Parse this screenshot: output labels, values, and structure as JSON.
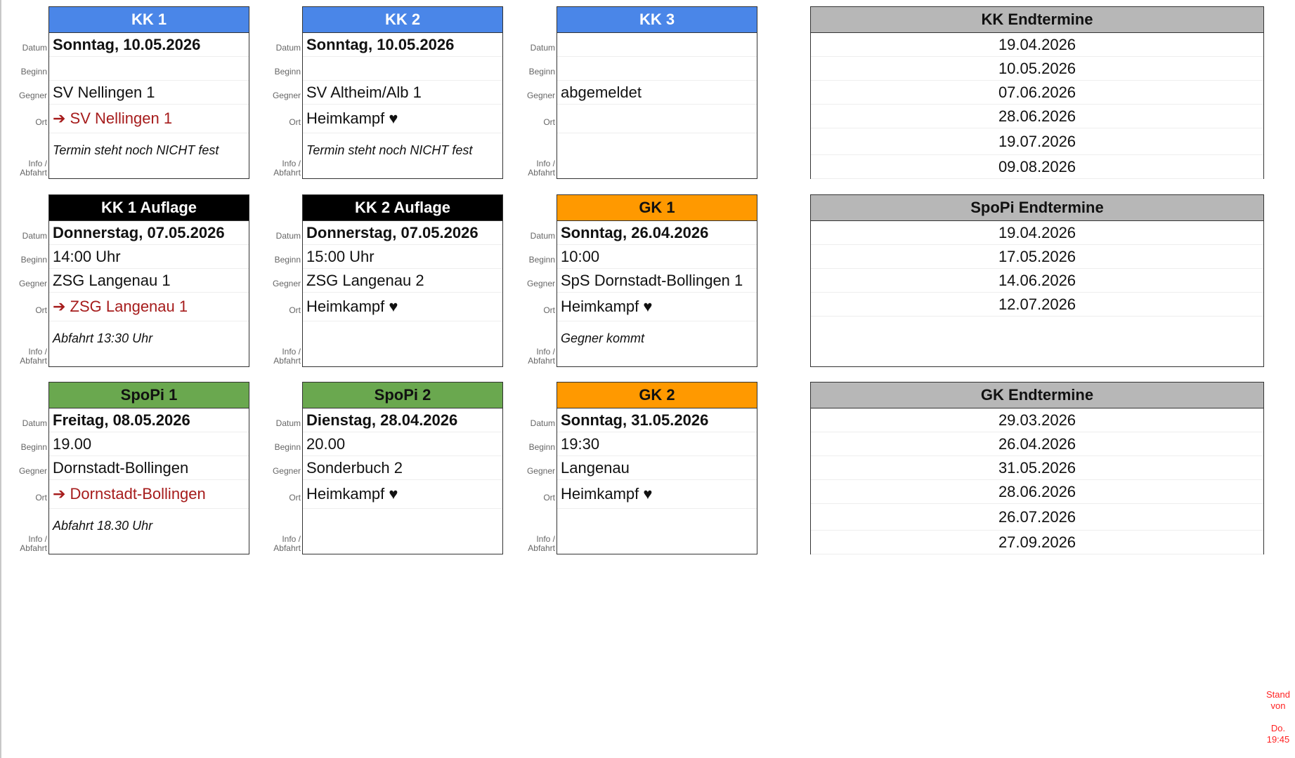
{
  "labels": {
    "datum": "Datum",
    "beginn": "Beginn",
    "gegner": "Gegner",
    "ort": "Ort",
    "info1": "Info /",
    "info2": "Abfahrt"
  },
  "cards": [
    {
      "title": "KK 1",
      "header_color": "#4a86e8",
      "header_text_color": "#ffffff",
      "datum": "Sonntag, 10.05.2026",
      "beginn": "",
      "gegner": "SV Nellingen 1",
      "ort": "➔ SV Nellingen 1",
      "away": true,
      "info": "Termin steht noch NICHT fest"
    },
    {
      "title": "KK 2",
      "header_color": "#4a86e8",
      "header_text_color": "#ffffff",
      "datum": "Sonntag, 10.05.2026",
      "beginn": "",
      "gegner": "SV Altheim/Alb 1",
      "ort": "Heimkampf ♥",
      "away": false,
      "info": "Termin steht noch NICHT fest"
    },
    {
      "title": "KK 3",
      "header_color": "#4a86e8",
      "header_text_color": "#ffffff",
      "datum": "",
      "beginn": "",
      "gegner": "abgemeldet",
      "ort": "",
      "away": false,
      "info": ""
    },
    {
      "title": "KK 1 Auflage",
      "header_color": "#000000",
      "header_text_color": "#ffffff",
      "datum": "Donnerstag, 07.05.2026",
      "beginn": "14:00 Uhr",
      "gegner": "ZSG Langenau 1",
      "ort": "➔ ZSG Langenau 1",
      "away": true,
      "info": "Abfahrt 13:30 Uhr"
    },
    {
      "title": "KK 2 Auflage",
      "header_color": "#000000",
      "header_text_color": "#ffffff",
      "datum": "Donnerstag, 07.05.2026",
      "beginn": "15:00 Uhr",
      "gegner": "ZSG Langenau 2",
      "ort": "Heimkampf ♥",
      "away": false,
      "info": ""
    },
    {
      "title": "GK 1",
      "header_color": "#ff9900",
      "header_text_color": "#111111",
      "datum": "Sonntag, 26.04.2026",
      "beginn": "10:00",
      "gegner": "SpS Dornstadt-Bollingen 1",
      "ort": "Heimkampf ♥",
      "away": false,
      "info": "Gegner kommt"
    },
    {
      "title": "SpoPi 1",
      "header_color": "#6aa84f",
      "header_text_color": "#111111",
      "datum": "Freitag, 08.05.2026",
      "beginn": "19.00",
      "gegner": "Dornstadt-Bollingen",
      "ort": "➔ Dornstadt-Bollingen",
      "away": true,
      "info": "Abfahrt 18.30 Uhr"
    },
    {
      "title": "SpoPi 2",
      "header_color": "#6aa84f",
      "header_text_color": "#111111",
      "datum": "Dienstag, 28.04.2026",
      "beginn": "20.00",
      "gegner": "Sonderbuch 2",
      "ort": "Heimkampf ♥",
      "away": false,
      "info": ""
    },
    {
      "title": "GK 2",
      "header_color": "#ff9900",
      "header_text_color": "#111111",
      "datum": "Sonntag, 31.05.2026",
      "beginn": "19:30",
      "gegner": "Langenau",
      "ort": "Heimkampf ♥",
      "away": false,
      "info": ""
    }
  ],
  "endtermine": [
    {
      "title": "KK Endtermine",
      "dates": [
        "19.04.2026",
        "10.05.2026",
        "07.06.2026",
        "28.06.2026",
        "19.07.2026",
        "09.08.2026"
      ]
    },
    {
      "title": "SpoPi Endtermine",
      "dates": [
        "19.04.2026",
        "17.05.2026",
        "14.06.2026",
        "12.07.2026"
      ]
    },
    {
      "title": "GK Endtermine",
      "dates": [
        "29.03.2026",
        "26.04.2026",
        "31.05.2026",
        "28.06.2026",
        "26.07.2026",
        "27.09.2026"
      ]
    }
  ],
  "stand": {
    "line1": "Stand",
    "line2": "von",
    "line3": "Do.",
    "line4": "19:45"
  }
}
